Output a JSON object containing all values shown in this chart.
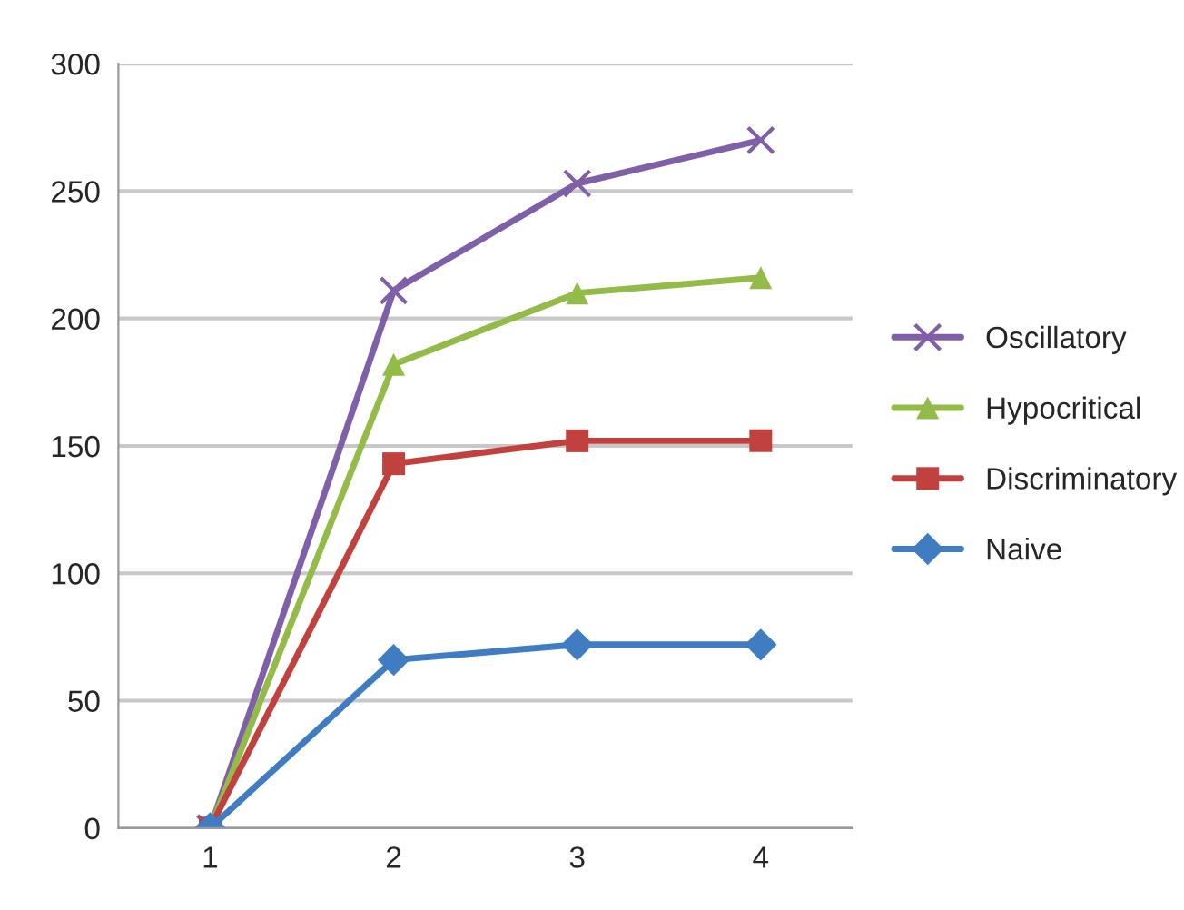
{
  "chart_data": {
    "type": "line",
    "categories": [
      "1",
      "2",
      "3",
      "4"
    ],
    "series": [
      {
        "name": "Oscillatory",
        "color": "#7f5fa8",
        "marker": "cross",
        "values": [
          0,
          211,
          253,
          270
        ]
      },
      {
        "name": "Hypocritical",
        "color": "#93bb47",
        "marker": "triangle",
        "values": [
          0,
          182,
          210,
          216
        ]
      },
      {
        "name": "Discriminatory",
        "color": "#c0413e",
        "marker": "square",
        "values": [
          0,
          143,
          152,
          152
        ]
      },
      {
        "name": "Naive",
        "color": "#3f7cc1",
        "marker": "diamond",
        "values": [
          0,
          66,
          72,
          72
        ]
      }
    ],
    "ylim": [
      0,
      300
    ],
    "yticks": [
      0,
      50,
      100,
      150,
      200,
      250,
      300
    ],
    "grid": "y",
    "legend": "right",
    "line_style": "solid"
  }
}
